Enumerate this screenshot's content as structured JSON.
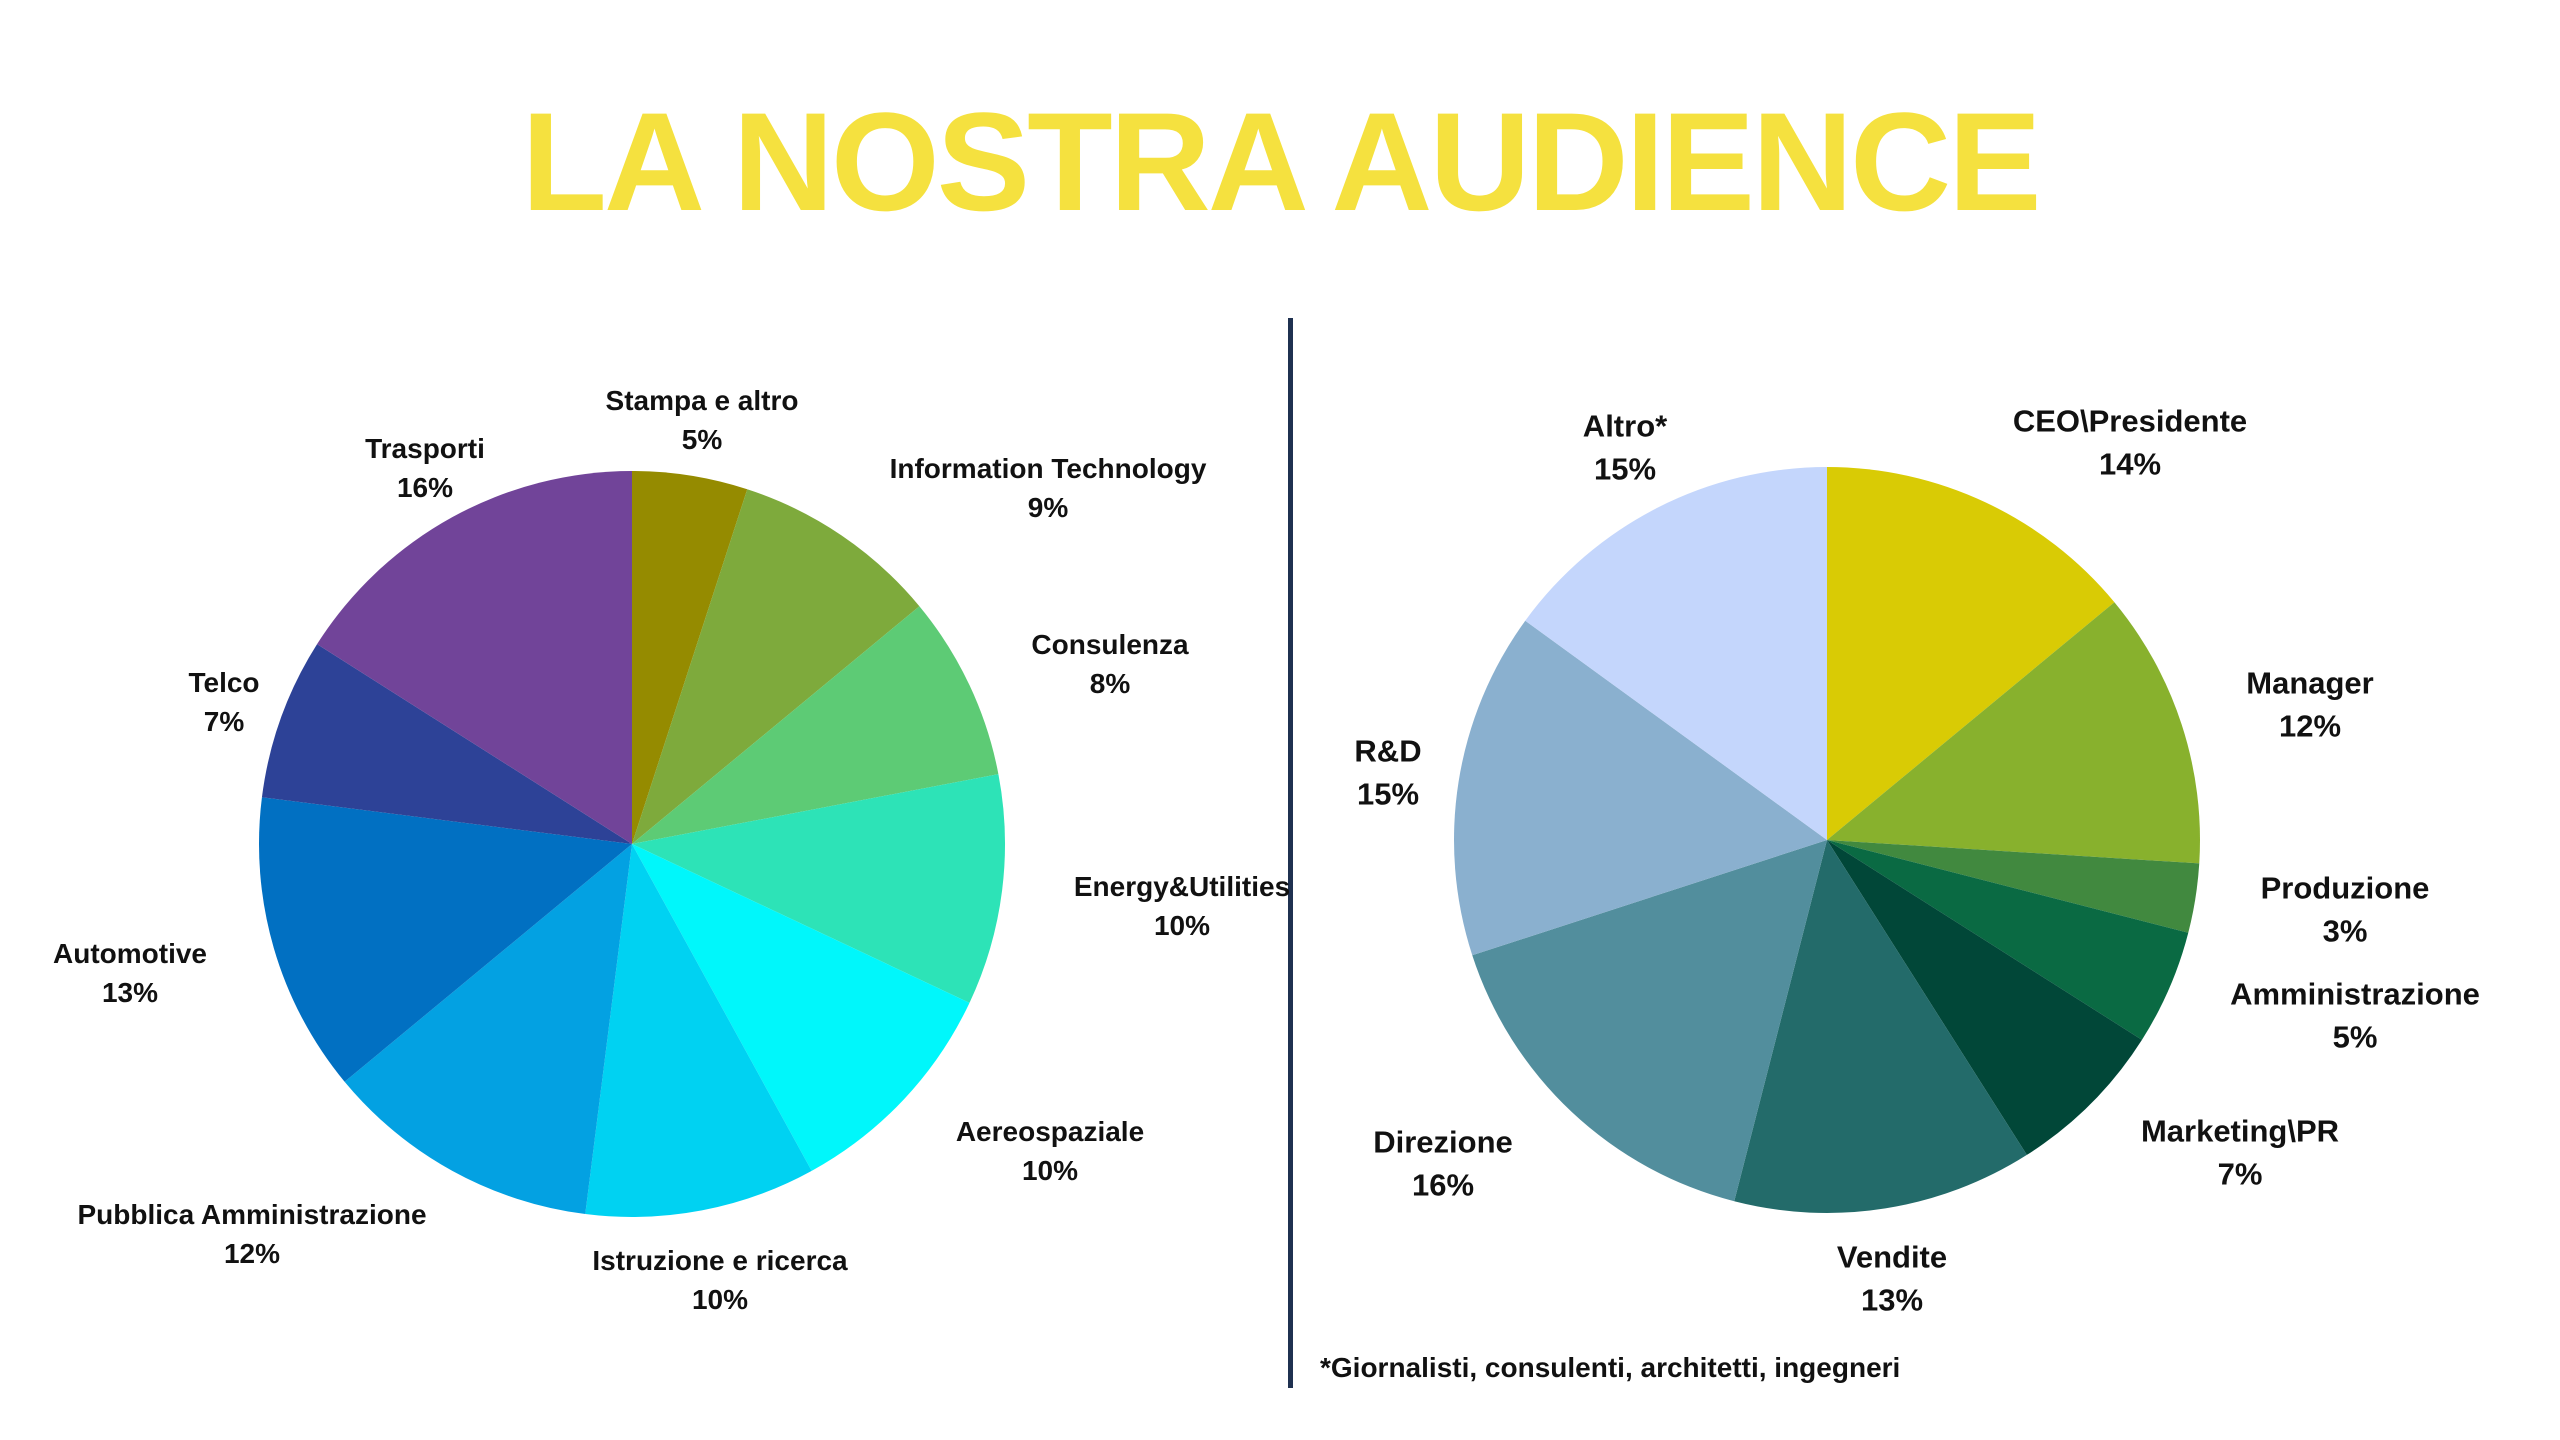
{
  "title": "LA NOSTRA AUDIENCE",
  "footnote": "*Giornalisti, consulenti, architetti, ingegneri",
  "chart_data": [
    {
      "type": "pie",
      "title": "",
      "categories": [
        "Stampa e altro",
        "Information Technology",
        "Consulenza",
        "Energy&Utilities",
        "Aereospaziale",
        "Istruzione e ricerca",
        "Pubblica Amministrazione",
        "Automotive",
        "Telco",
        "Trasporti"
      ],
      "values": [
        5,
        9,
        8,
        10,
        10,
        10,
        12,
        13,
        7,
        16
      ],
      "value_labels": [
        "5%",
        "9%",
        "8%",
        "10%",
        "10%",
        "10%",
        "12%",
        "13%",
        "7%",
        "16%"
      ],
      "colors": [
        "#958b00",
        "#7eaa3c",
        "#5dcb75",
        "#2de3b7",
        "#00f7fb",
        "#00d2f2",
        "#03a1e2",
        "#0170c2",
        "#2d4297",
        "#714499"
      ]
    },
    {
      "type": "pie",
      "title": "",
      "categories": [
        "CEO\\Presidente",
        "Manager",
        "Produzione",
        "Amministrazione",
        "Marketing\\PR",
        "Vendite",
        "Direzione",
        "R&D",
        "Altro*"
      ],
      "values": [
        14,
        12,
        3,
        5,
        7,
        13,
        16,
        15,
        15
      ],
      "value_labels": [
        "14%",
        "12%",
        "3%",
        "5%",
        "7%",
        "13%",
        "16%",
        "15%",
        "15%"
      ],
      "colors": [
        "#d9cb05",
        "#88b12d",
        "#41893f",
        "#0a6a43",
        "#014738",
        "#236b6a",
        "#528e9d",
        "#8ab0cf",
        "#c4d6fc"
      ]
    }
  ]
}
